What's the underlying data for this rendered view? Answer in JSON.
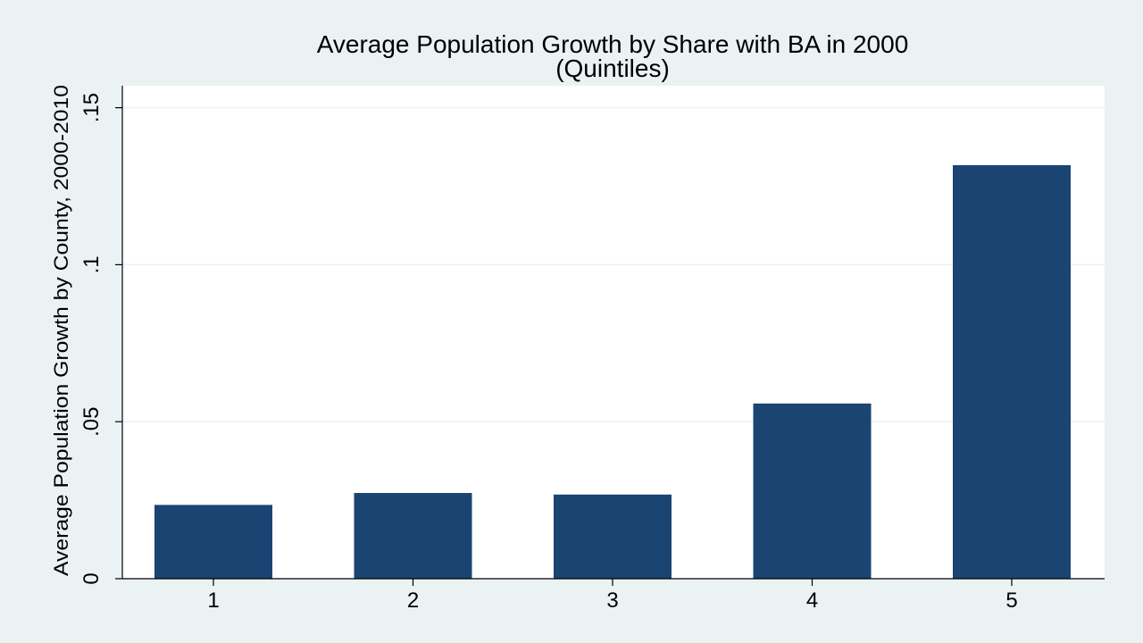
{
  "chart_data": {
    "type": "bar",
    "title": "Average Population Growth by Share with BA in 2000",
    "subtitle": "(Quintiles)",
    "xlabel": "",
    "ylabel": "Average Population Growth by County, 2000-2010",
    "categories": [
      "1",
      "2",
      "3",
      "4",
      "5"
    ],
    "values": [
      0.0235,
      0.0273,
      0.0268,
      0.0558,
      0.1317
    ],
    "ylim": [
      0,
      0.157
    ],
    "yticks": [
      0,
      0.05,
      0.1,
      0.15
    ],
    "ytick_labels": [
      "0",
      ".05",
      ".1",
      ".15"
    ],
    "grid": true,
    "colors": {
      "bar": "#1a4472",
      "outer_background": "#eaf2f3",
      "plot_background": "#ffffff",
      "grid": "#eaf2f3",
      "axis": "#000000"
    }
  }
}
